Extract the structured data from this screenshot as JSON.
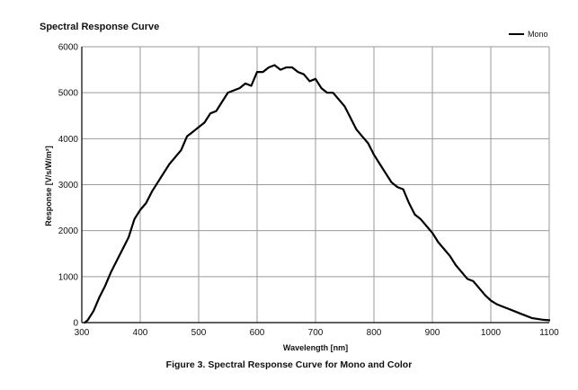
{
  "chart_data": {
    "type": "line",
    "title": "Spectral Response Curve",
    "xlabel": "Wavelength [nm]",
    "ylabel": "Response [V/s/W/m²]",
    "caption": "Figure 3. Spectral Response Curve for Mono and Color",
    "xlim": [
      300,
      1100
    ],
    "ylim": [
      0,
      6000
    ],
    "xticks": [
      300,
      400,
      500,
      600,
      700,
      800,
      900,
      1000,
      1100
    ],
    "yticks": [
      0,
      1000,
      2000,
      3000,
      4000,
      5000,
      6000
    ],
    "grid": true,
    "legend_position": "top-right",
    "series": [
      {
        "name": "Mono",
        "color": "#000000",
        "x": [
          305,
          310,
          320,
          330,
          340,
          350,
          360,
          370,
          380,
          390,
          400,
          410,
          420,
          430,
          440,
          450,
          460,
          470,
          480,
          490,
          500,
          510,
          520,
          530,
          540,
          550,
          560,
          570,
          580,
          590,
          600,
          610,
          620,
          630,
          640,
          650,
          660,
          670,
          680,
          690,
          700,
          710,
          720,
          730,
          740,
          750,
          760,
          770,
          780,
          790,
          800,
          810,
          820,
          830,
          840,
          850,
          860,
          870,
          880,
          890,
          900,
          910,
          920,
          930,
          940,
          950,
          960,
          970,
          980,
          990,
          1000,
          1010,
          1020,
          1030,
          1040,
          1050,
          1060,
          1070,
          1080,
          1090,
          1100
        ],
        "values": [
          0,
          50,
          250,
          550,
          800,
          1100,
          1350,
          1600,
          1850,
          2250,
          2450,
          2600,
          2850,
          3050,
          3250,
          3450,
          3600,
          3750,
          4050,
          4150,
          4250,
          4350,
          4550,
          4600,
          4800,
          5000,
          5050,
          5100,
          5200,
          5150,
          5450,
          5450,
          5550,
          5600,
          5500,
          5550,
          5550,
          5450,
          5400,
          5250,
          5300,
          5100,
          5000,
          5000,
          4850,
          4700,
          4450,
          4200,
          4050,
          3900,
          3650,
          3450,
          3250,
          3050,
          2950,
          2900,
          2600,
          2350,
          2250,
          2100,
          1950,
          1750,
          1600,
          1450,
          1250,
          1100,
          950,
          900,
          750,
          600,
          480,
          400,
          350,
          300,
          250,
          200,
          150,
          100,
          80,
          60,
          50
        ]
      }
    ]
  }
}
